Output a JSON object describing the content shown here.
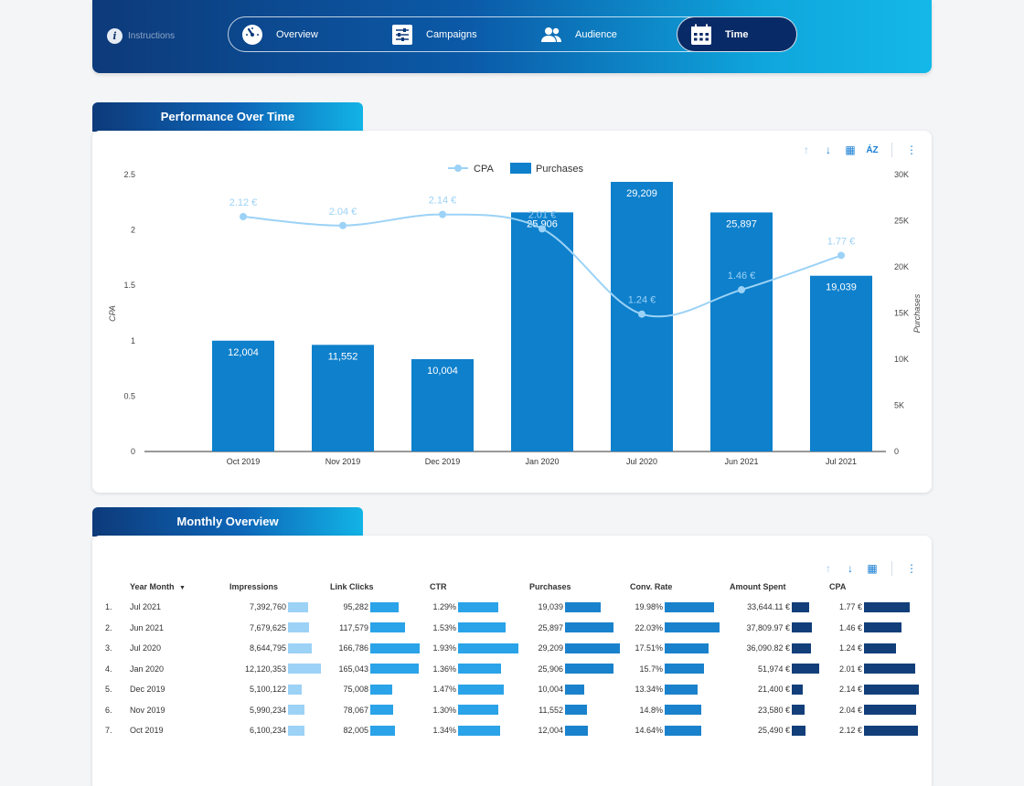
{
  "header": {
    "instructions_label": "Instructions",
    "nav": [
      {
        "label": "Overview",
        "icon": "speedometer-icon"
      },
      {
        "label": "Campaigns",
        "icon": "sliders-icon"
      },
      {
        "label": "Audience",
        "icon": "people-icon"
      },
      {
        "label": "Time",
        "icon": "calendar-icon",
        "active": true
      }
    ]
  },
  "sections": {
    "performance_title": "Performance Over Time",
    "monthly_title": "Monthly Overview"
  },
  "chart_data": {
    "type": "bar",
    "categories": [
      "Oct 2019",
      "Nov 2019",
      "Dec 2019",
      "Jan 2020",
      "Jul 2020",
      "Jun 2021",
      "Jul 2021"
    ],
    "series": [
      {
        "name": "Purchases",
        "type": "bar",
        "axis": "right",
        "color": "#0e80cc",
        "values": [
          12004,
          11552,
          10004,
          25906,
          29209,
          25897,
          19039
        ],
        "labels": [
          "12,004",
          "11,552",
          "10,004",
          "25,906",
          "29,209",
          "25,897",
          "19,039"
        ]
      },
      {
        "name": "CPA",
        "type": "line",
        "axis": "left",
        "color": "#9cd2f6",
        "values": [
          2.12,
          2.04,
          2.14,
          2.01,
          1.24,
          1.46,
          1.77
        ],
        "labels": [
          "2.12 €",
          "2.04 €",
          "2.14 €",
          "2.01 €",
          "1.24 €",
          "1.46 €",
          "1.77 €"
        ]
      }
    ],
    "ylabel_left": "CPA",
    "ylabel_right": "Purchases",
    "ylim_left": [
      0,
      2.5
    ],
    "ylim_right": [
      0,
      30000
    ],
    "yticks_left": [
      "0",
      "0.5",
      "1",
      "1.5",
      "2",
      "2.5"
    ],
    "yticks_right": [
      "0",
      "5K",
      "10K",
      "15K",
      "20K",
      "25K",
      "30K"
    ],
    "legend": [
      "CPA",
      "Purchases"
    ],
    "legend_position": "top-center",
    "grid": false
  },
  "table": {
    "headers": [
      "Year Month",
      "Impressions",
      "Link Clicks",
      "CTR",
      "Purchases",
      "Conv. Rate",
      "Amount Spent",
      "CPA"
    ],
    "sort_indicator": "▼",
    "rows": [
      {
        "idx": "1.",
        "month": "Jul 2021",
        "imp": "7,392,760",
        "clicks": "95,282",
        "ctr": "1.29%",
        "purch": "19,039",
        "conv": "19.98%",
        "spent": "33,644.11 €",
        "cpa": "1.77 €"
      },
      {
        "idx": "2.",
        "month": "Jun 2021",
        "imp": "7,679,625",
        "clicks": "117,579",
        "ctr": "1.53%",
        "purch": "25,897",
        "conv": "22.03%",
        "spent": "37,809.97 €",
        "cpa": "1.46 €"
      },
      {
        "idx": "3.",
        "month": "Jul 2020",
        "imp": "8,644,795",
        "clicks": "166,786",
        "ctr": "1.93%",
        "purch": "29,209",
        "conv": "17.51%",
        "spent": "36,090.82 €",
        "cpa": "1.24 €"
      },
      {
        "idx": "4.",
        "month": "Jan 2020",
        "imp": "12,120,353",
        "clicks": "165,043",
        "ctr": "1.36%",
        "purch": "25,906",
        "conv": "15.7%",
        "spent": "51,974 €",
        "cpa": "2.01 €"
      },
      {
        "idx": "5.",
        "month": "Dec 2019",
        "imp": "5,100,122",
        "clicks": "75,008",
        "ctr": "1.47%",
        "purch": "10,004",
        "conv": "13.34%",
        "spent": "21,400 €",
        "cpa": "2.14 €"
      },
      {
        "idx": "6.",
        "month": "Nov 2019",
        "imp": "5,990,234",
        "clicks": "78,067",
        "ctr": "1.30%",
        "purch": "11,552",
        "conv": "14.8%",
        "spent": "23,580 €",
        "cpa": "2.04 €"
      },
      {
        "idx": "7.",
        "month": "Oct 2019",
        "imp": "6,100,234",
        "clicks": "82,005",
        "ctr": "1.34%",
        "purch": "12,004",
        "conv": "14.64%",
        "spent": "25,490 €",
        "cpa": "2.12 €"
      }
    ],
    "bar_values": {
      "imp": [
        7392760,
        7679625,
        8644795,
        12120353,
        5100122,
        5990234,
        6100234
      ],
      "clicks": [
        95282,
        117579,
        166786,
        165043,
        75008,
        78067,
        82005
      ],
      "ctr": [
        1.29,
        1.53,
        1.93,
        1.36,
        1.47,
        1.3,
        1.34
      ],
      "purch": [
        19039,
        25897,
        29209,
        25906,
        10004,
        11552,
        12004
      ],
      "conv": [
        19.98,
        22.03,
        17.51,
        15.7,
        13.34,
        14.8,
        14.64
      ],
      "spent": [
        33644.11,
        37809.97,
        36090.82,
        51974,
        21400,
        23580,
        25490
      ],
      "cpa": [
        1.77,
        1.46,
        1.24,
        2.01,
        2.14,
        2.04,
        2.12
      ]
    },
    "bar_colors": {
      "imp": "#9cd2f6",
      "clicks": "#2aa3e8",
      "ctr": "#2aa3e8",
      "purch": "#1a82cc",
      "conv": "#1a82cc",
      "spent": "#123f7a",
      "cpa": "#123f7a"
    }
  }
}
